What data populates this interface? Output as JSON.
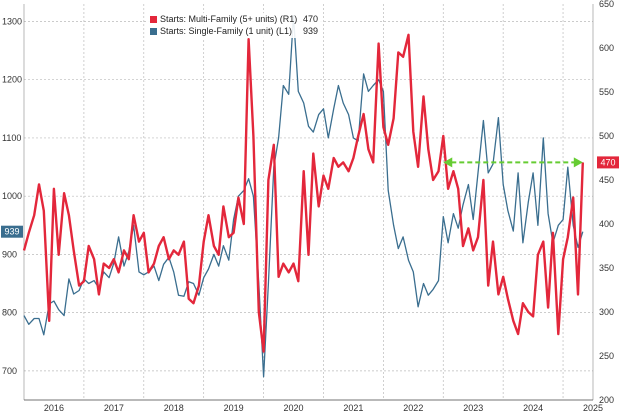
{
  "chart_data": {
    "type": "line",
    "title": "",
    "xlabel": "",
    "ylabel": "",
    "x_ticks": [
      "2016",
      "2017",
      "2018",
      "2019",
      "2020",
      "2021",
      "2022",
      "2023",
      "2024",
      "2025"
    ],
    "left_axis": {
      "range": [
        650,
        1330
      ],
      "ticks": [
        700,
        800,
        900,
        1000,
        1100,
        1200,
        1300
      ]
    },
    "right_axis": {
      "range": [
        200,
        650
      ],
      "ticks": [
        200,
        250,
        300,
        350,
        400,
        450,
        500,
        550,
        600,
        650
      ]
    },
    "grid": true,
    "legend_position": "top-left",
    "series": [
      {
        "name": "Starts: Multi-Family (5+ units) (R1)",
        "last_value": "470",
        "axis": "right",
        "color": "#e3273b",
        "x": [
          2016.0,
          2016.08,
          2016.17,
          2016.25,
          2016.33,
          2016.42,
          2016.5,
          2016.58,
          2016.67,
          2016.75,
          2016.83,
          2016.92,
          2017.0,
          2017.08,
          2017.17,
          2017.25,
          2017.33,
          2017.42,
          2017.5,
          2017.58,
          2017.67,
          2017.75,
          2017.83,
          2017.92,
          2018.0,
          2018.08,
          2018.17,
          2018.25,
          2018.33,
          2018.42,
          2018.5,
          2018.58,
          2018.67,
          2018.75,
          2018.83,
          2018.92,
          2019.0,
          2019.08,
          2019.17,
          2019.25,
          2019.33,
          2019.42,
          2019.5,
          2019.58,
          2019.67,
          2019.75,
          2019.83,
          2019.92,
          2020.0,
          2020.08,
          2020.17,
          2020.25,
          2020.33,
          2020.42,
          2020.5,
          2020.58,
          2020.67,
          2020.75,
          2020.83,
          2020.92,
          2021.0,
          2021.08,
          2021.17,
          2021.25,
          2021.33,
          2021.42,
          2021.5,
          2021.58,
          2021.67,
          2021.75,
          2021.83,
          2021.92,
          2022.0,
          2022.08,
          2022.17,
          2022.25,
          2022.33,
          2022.42,
          2022.5,
          2022.58,
          2022.67,
          2022.75,
          2022.83,
          2022.92,
          2023.0,
          2023.08,
          2023.17,
          2023.25,
          2023.33,
          2023.42,
          2023.5,
          2023.58,
          2023.67,
          2023.75,
          2023.83,
          2023.92,
          2024.0,
          2024.08,
          2024.17,
          2024.25,
          2024.33,
          2024.42,
          2024.5,
          2024.58,
          2024.67,
          2024.75,
          2024.83,
          2024.92,
          2025.0,
          2025.08,
          2025.17,
          2025.25,
          2025.33
        ],
        "values": [
          370,
          390,
          410,
          445,
          415,
          290,
          440,
          365,
          435,
          410,
          370,
          330,
          335,
          375,
          360,
          320,
          355,
          350,
          360,
          345,
          370,
          360,
          410,
          380,
          390,
          345,
          355,
          375,
          385,
          360,
          370,
          365,
          380,
          315,
          310,
          330,
          380,
          410,
          375,
          365,
          420,
          385,
          390,
          430,
          400,
          610,
          500,
          300,
          255,
          450,
          490,
          340,
          355,
          345,
          355,
          335,
          460,
          365,
          480,
          420,
          455,
          440,
          475,
          465,
          470,
          460,
          475,
          500,
          525,
          485,
          470,
          605,
          510,
          490,
          520,
          595,
          590,
          615,
          505,
          465,
          545,
          485,
          450,
          460,
          500,
          440,
          460,
          440,
          375,
          395,
          370,
          385,
          450,
          330,
          380,
          320,
          340,
          315,
          290,
          275,
          310,
          300,
          295,
          365,
          380,
          305,
          390,
          275,
          360,
          385,
          430,
          320,
          470
        ]
      },
      {
        "name": "Starts: Single-Family (1 unit) (L1)",
        "last_value": "939",
        "axis": "left",
        "color": "#3a6e8f",
        "x": [
          2016.0,
          2016.08,
          2016.17,
          2016.25,
          2016.33,
          2016.42,
          2016.5,
          2016.58,
          2016.67,
          2016.75,
          2016.83,
          2016.92,
          2017.0,
          2017.08,
          2017.17,
          2017.25,
          2017.33,
          2017.42,
          2017.5,
          2017.58,
          2017.67,
          2017.75,
          2017.83,
          2017.92,
          2018.0,
          2018.08,
          2018.17,
          2018.25,
          2018.33,
          2018.42,
          2018.5,
          2018.58,
          2018.67,
          2018.75,
          2018.83,
          2018.92,
          2019.0,
          2019.08,
          2019.17,
          2019.25,
          2019.33,
          2019.42,
          2019.5,
          2019.58,
          2019.67,
          2019.75,
          2019.83,
          2019.92,
          2020.0,
          2020.08,
          2020.17,
          2020.25,
          2020.33,
          2020.42,
          2020.5,
          2020.58,
          2020.67,
          2020.75,
          2020.83,
          2020.92,
          2021.0,
          2021.08,
          2021.17,
          2021.25,
          2021.33,
          2021.42,
          2021.5,
          2021.58,
          2021.67,
          2021.75,
          2021.83,
          2021.92,
          2022.0,
          2022.08,
          2022.17,
          2022.25,
          2022.33,
          2022.42,
          2022.5,
          2022.58,
          2022.67,
          2022.75,
          2022.83,
          2022.92,
          2023.0,
          2023.08,
          2023.17,
          2023.25,
          2023.33,
          2023.42,
          2023.5,
          2023.58,
          2023.67,
          2023.75,
          2023.83,
          2023.92,
          2024.0,
          2024.08,
          2024.17,
          2024.25,
          2024.33,
          2024.42,
          2024.5,
          2024.58,
          2024.67,
          2024.75,
          2024.83,
          2024.92,
          2025.0,
          2025.08,
          2025.17,
          2025.25,
          2025.33
        ],
        "values": [
          795,
          780,
          790,
          790,
          762,
          815,
          820,
          805,
          795,
          858,
          832,
          838,
          858,
          850,
          855,
          842,
          870,
          860,
          885,
          930,
          880,
          905,
          950,
          870,
          865,
          870,
          880,
          855,
          883,
          895,
          870,
          830,
          828,
          853,
          850,
          830,
          860,
          875,
          900,
          880,
          915,
          890,
          960,
          1000,
          1010,
          1030,
          1000,
          850,
          690,
          850,
          1050,
          1100,
          1190,
          1175,
          1310,
          1180,
          1160,
          1120,
          1110,
          1140,
          1150,
          1100,
          1150,
          1190,
          1160,
          1140,
          1100,
          1095,
          1210,
          1180,
          1190,
          1200,
          1180,
          1010,
          950,
          910,
          930,
          890,
          870,
          810,
          850,
          830,
          840,
          855,
          965,
          920,
          970,
          945,
          985,
          1020,
          960,
          1040,
          1130,
          1040,
          1055,
          1135,
          1020,
          975,
          940,
          1040,
          920,
          990,
          1040,
          950,
          1100,
          970,
          920,
          950,
          960,
          1050,
          950,
          912,
          939
        ]
      }
    ],
    "annotation": {
      "type": "dashed-arrow",
      "color": "#66cc33",
      "value": 470,
      "axis": "right",
      "x_start": 2023.0,
      "x_end": 2025.33
    }
  }
}
